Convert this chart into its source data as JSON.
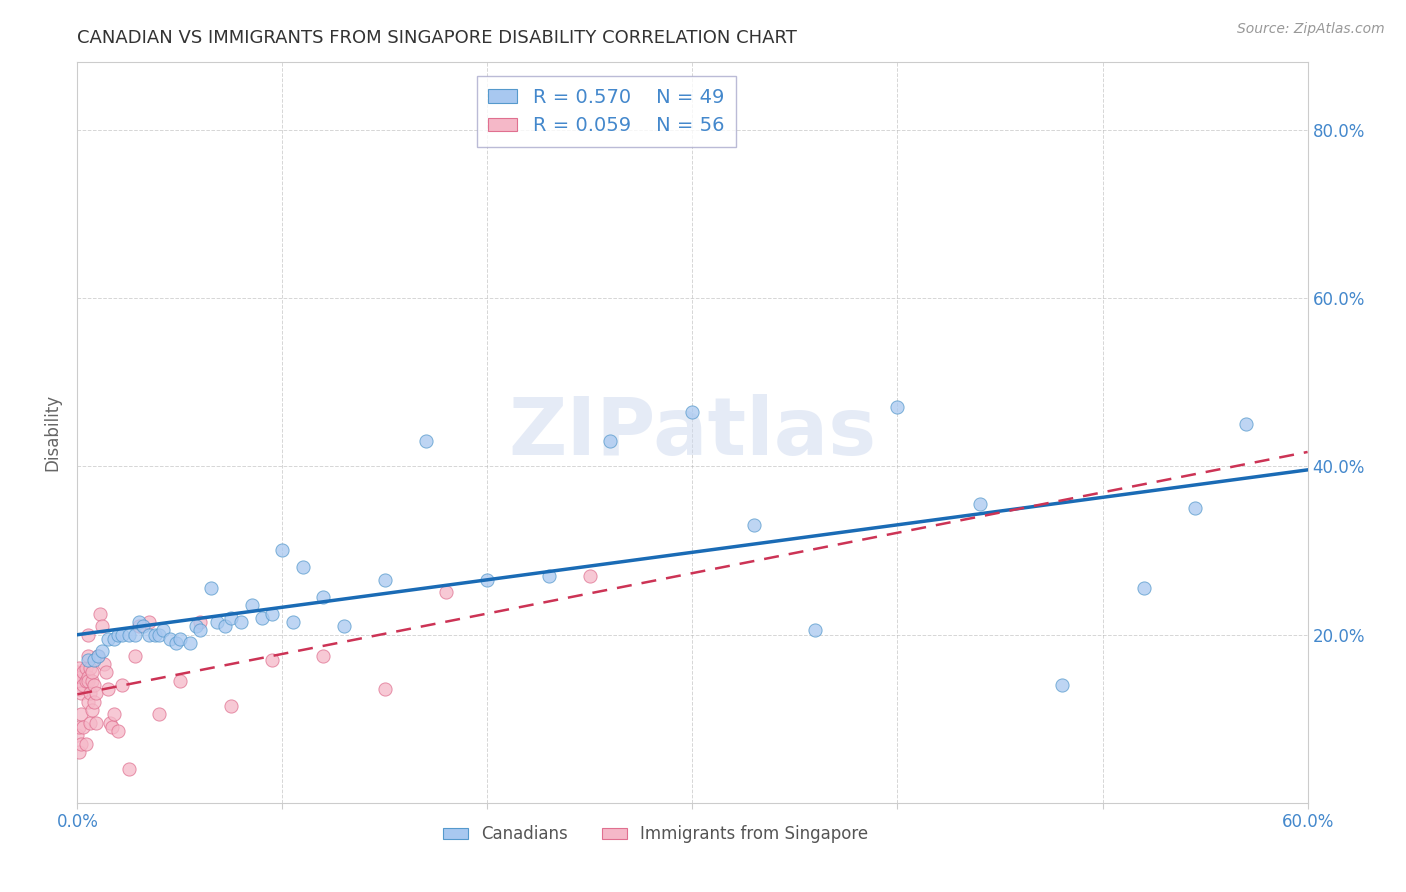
{
  "title": "CANADIAN VS IMMIGRANTS FROM SINGAPORE DISABILITY CORRELATION CHART",
  "source": "Source: ZipAtlas.com",
  "ylabel": "Disability",
  "watermark": "ZIPatlas",
  "xlim": [
    0.0,
    0.6
  ],
  "ylim": [
    0.0,
    0.88
  ],
  "xticks": [
    0.0,
    0.1,
    0.2,
    0.3,
    0.4,
    0.5,
    0.6
  ],
  "yticks": [
    0.0,
    0.2,
    0.4,
    0.6,
    0.8
  ],
  "ytick_labels": [
    "",
    "20.0%",
    "40.0%",
    "60.0%",
    "80.0%"
  ],
  "xtick_labels": [
    "0.0%",
    "",
    "",
    "",
    "",
    "",
    "60.0%"
  ],
  "canadian_R": 0.57,
  "canadian_N": 49,
  "singapore_R": 0.059,
  "singapore_N": 56,
  "canadian_color": "#a8c8f0",
  "canadian_edge_color": "#5599cc",
  "canadian_line_color": "#1a6bb5",
  "singapore_color": "#f5b8c8",
  "singapore_edge_color": "#e07090",
  "singapore_line_color": "#cc3355",
  "background_color": "#ffffff",
  "grid_color": "#bbbbbb",
  "title_color": "#333333",
  "axis_color": "#4488cc",
  "canadian_x": [
    0.005,
    0.008,
    0.01,
    0.012,
    0.015,
    0.018,
    0.02,
    0.022,
    0.025,
    0.028,
    0.03,
    0.032,
    0.035,
    0.038,
    0.04,
    0.042,
    0.045,
    0.048,
    0.05,
    0.055,
    0.058,
    0.06,
    0.065,
    0.068,
    0.072,
    0.075,
    0.08,
    0.085,
    0.09,
    0.095,
    0.1,
    0.105,
    0.11,
    0.12,
    0.13,
    0.15,
    0.17,
    0.2,
    0.23,
    0.26,
    0.3,
    0.33,
    0.36,
    0.4,
    0.44,
    0.48,
    0.52,
    0.545,
    0.57
  ],
  "canadian_y": [
    0.17,
    0.17,
    0.175,
    0.18,
    0.195,
    0.195,
    0.2,
    0.2,
    0.2,
    0.2,
    0.215,
    0.21,
    0.2,
    0.2,
    0.2,
    0.205,
    0.195,
    0.19,
    0.195,
    0.19,
    0.21,
    0.205,
    0.255,
    0.215,
    0.21,
    0.22,
    0.215,
    0.235,
    0.22,
    0.225,
    0.3,
    0.215,
    0.28,
    0.245,
    0.21,
    0.265,
    0.43,
    0.265,
    0.27,
    0.43,
    0.465,
    0.33,
    0.205,
    0.47,
    0.355,
    0.14,
    0.255,
    0.35,
    0.45
  ],
  "singapore_x": [
    0.0,
    0.0,
    0.0,
    0.001,
    0.001,
    0.001,
    0.001,
    0.002,
    0.002,
    0.002,
    0.002,
    0.003,
    0.003,
    0.003,
    0.004,
    0.004,
    0.004,
    0.005,
    0.005,
    0.005,
    0.005,
    0.005,
    0.006,
    0.006,
    0.006,
    0.007,
    0.007,
    0.007,
    0.008,
    0.008,
    0.009,
    0.009,
    0.01,
    0.011,
    0.012,
    0.013,
    0.014,
    0.015,
    0.016,
    0.017,
    0.018,
    0.02,
    0.022,
    0.025,
    0.028,
    0.03,
    0.035,
    0.04,
    0.05,
    0.06,
    0.075,
    0.095,
    0.12,
    0.15,
    0.18,
    0.25
  ],
  "singapore_y": [
    0.155,
    0.145,
    0.08,
    0.16,
    0.135,
    0.09,
    0.06,
    0.15,
    0.13,
    0.105,
    0.07,
    0.155,
    0.14,
    0.09,
    0.145,
    0.16,
    0.07,
    0.15,
    0.175,
    0.2,
    0.145,
    0.12,
    0.16,
    0.13,
    0.095,
    0.145,
    0.155,
    0.11,
    0.14,
    0.12,
    0.13,
    0.095,
    0.175,
    0.225,
    0.21,
    0.165,
    0.155,
    0.135,
    0.095,
    0.09,
    0.105,
    0.085,
    0.14,
    0.04,
    0.175,
    0.21,
    0.215,
    0.105,
    0.145,
    0.215,
    0.115,
    0.17,
    0.175,
    0.135,
    0.25,
    0.27
  ]
}
